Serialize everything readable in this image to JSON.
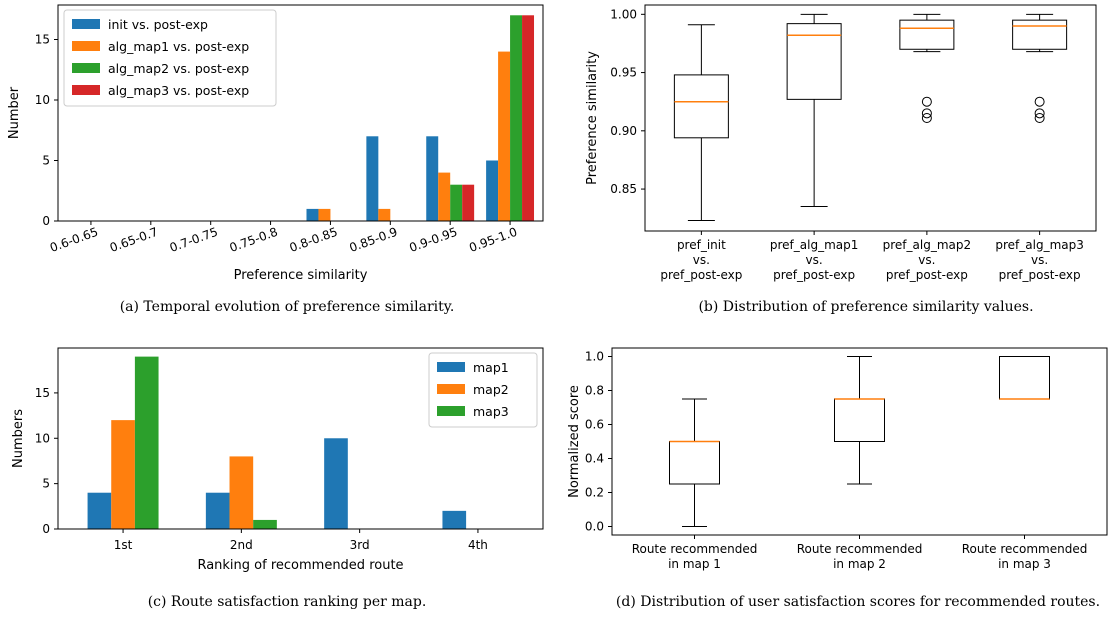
{
  "chart_data": [
    {
      "id": "a",
      "type": "bar",
      "caption": "(a)  Temporal evolution of preference similarity.",
      "xlabel": "Preference similarity",
      "ylabel": "Number",
      "categories": [
        "0.6-0.65",
        "0.65-0.7",
        "0.7-0.75",
        "0.75-0.8",
        "0.8-0.85",
        "0.85-0.9",
        "0.9-0.95",
        "0.95-1.0"
      ],
      "ylim": [
        0,
        17.85
      ],
      "yticks": [
        0,
        5,
        10,
        15
      ],
      "legend_position": "upper-left",
      "colors": [
        "#1f77b4",
        "#ff7f0e",
        "#2ca02c",
        "#d62728"
      ],
      "series": [
        {
          "name": "init vs. post-exp",
          "values": [
            0,
            0,
            0,
            0,
            1,
            7,
            7,
            5
          ]
        },
        {
          "name": "alg_map1 vs. post-exp",
          "values": [
            0,
            0,
            0,
            0,
            1,
            1,
            4,
            14
          ]
        },
        {
          "name": "alg_map2 vs. post-exp",
          "values": [
            0,
            0,
            0,
            0,
            0,
            0,
            3,
            17
          ]
        },
        {
          "name": "alg_map3 vs. post-exp",
          "values": [
            0,
            0,
            0,
            0,
            0,
            0,
            3,
            17
          ]
        }
      ]
    },
    {
      "id": "b",
      "type": "box",
      "caption": "(b)  Distribution of preference similarity values.",
      "ylabel": "Preference similarity",
      "ylim": [
        0.814,
        1.008
      ],
      "yticks": [
        "0.85",
        "0.90",
        "0.95",
        "1.00"
      ],
      "groups": [
        {
          "label": [
            "pref_init",
            "vs.",
            "pref_post-exp"
          ],
          "whisker_low": 0.823,
          "q1": 0.894,
          "median": 0.925,
          "q3": 0.948,
          "whisker_high": 0.991,
          "outliers": []
        },
        {
          "label": [
            "pref_alg_map1",
            "vs.",
            "pref_post-exp"
          ],
          "whisker_low": 0.835,
          "q1": 0.927,
          "median": 0.982,
          "q3": 0.992,
          "whisker_high": 1.0,
          "outliers": []
        },
        {
          "label": [
            "pref_alg_map2",
            "vs.",
            "pref_post-exp"
          ],
          "whisker_low": 0.968,
          "q1": 0.97,
          "median": 0.988,
          "q3": 0.995,
          "whisker_high": 1.0,
          "outliers": [
            0.925,
            0.915,
            0.911
          ]
        },
        {
          "label": [
            "pref_alg_map3",
            "vs.",
            "pref_post-exp"
          ],
          "whisker_low": 0.968,
          "q1": 0.97,
          "median": 0.99,
          "q3": 0.995,
          "whisker_high": 1.0,
          "outliers": [
            0.925,
            0.915,
            0.911
          ]
        }
      ]
    },
    {
      "id": "c",
      "type": "bar",
      "caption": "(c)  Route satisfaction ranking per map.",
      "xlabel": "Ranking of recommended route",
      "ylabel": "Numbers",
      "categories": [
        "1st",
        "2nd",
        "3rd",
        "4th"
      ],
      "ylim": [
        0,
        19.95
      ],
      "yticks": [
        0,
        5,
        10,
        15
      ],
      "legend_position": "upper-right",
      "colors": [
        "#1f77b4",
        "#ff7f0e",
        "#2ca02c"
      ],
      "series": [
        {
          "name": "map1",
          "values": [
            4,
            4,
            10,
            2
          ]
        },
        {
          "name": "map2",
          "values": [
            12,
            8,
            0,
            0
          ]
        },
        {
          "name": "map3",
          "values": [
            19,
            1,
            0,
            0
          ]
        }
      ]
    },
    {
      "id": "d",
      "type": "box",
      "caption": "(d)  Distribution of user satisfaction scores for recommended routes.",
      "ylabel": "Normalized score",
      "ylim": [
        -0.05,
        1.05
      ],
      "yticks": [
        "0.0",
        "0.2",
        "0.4",
        "0.6",
        "0.8",
        "1.0"
      ],
      "groups": [
        {
          "label": [
            "Route recommended",
            "in map 1"
          ],
          "whisker_low": 0.0,
          "q1": 0.25,
          "median": 0.5,
          "q3": 0.5,
          "whisker_high": 0.75,
          "outliers": []
        },
        {
          "label": [
            "Route recommended",
            "in map 2"
          ],
          "whisker_low": 0.25,
          "q1": 0.5,
          "median": 0.75,
          "q3": 0.75,
          "whisker_high": 1.0,
          "outliers": []
        },
        {
          "label": [
            "Route recommended",
            "in map 3"
          ],
          "whisker_low": 0.75,
          "q1": 0.75,
          "median": 0.75,
          "q3": 1.0,
          "whisker_high": 1.0,
          "outliers": []
        }
      ]
    }
  ]
}
